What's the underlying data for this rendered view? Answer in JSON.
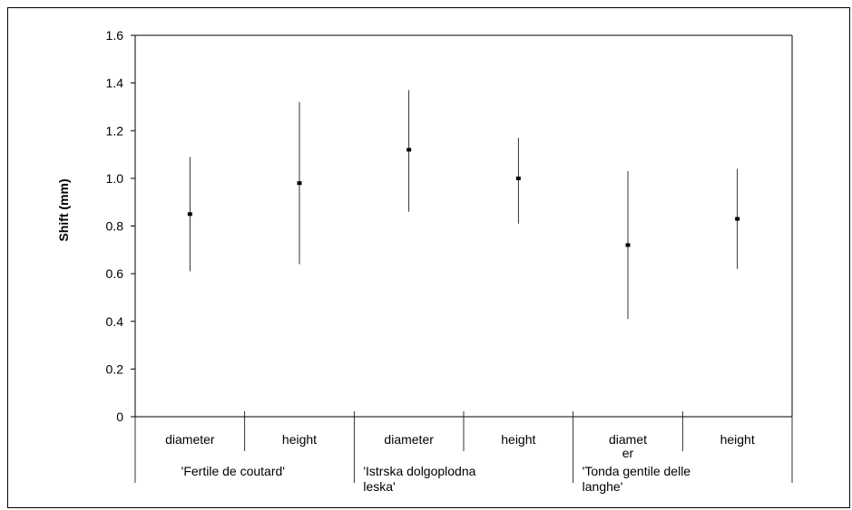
{
  "chart_data": {
    "type": "scatter",
    "ylabel": "Shift (mm)",
    "ylim": [
      0,
      1.6
    ],
    "yticks": [
      "0",
      "0.2",
      "0.4",
      "0.6",
      "0.8",
      "1.0",
      "1.2",
      "1.4",
      "1.6"
    ],
    "grid": false,
    "groups": [
      {
        "label_lines": [
          "'Fertile de coutard'"
        ]
      },
      {
        "label_lines": [
          "'Istrska dolgoplodna",
          "leska'"
        ]
      },
      {
        "label_lines": [
          "'Tonda gentile delle",
          "langhe'"
        ]
      }
    ],
    "categories": [
      {
        "label_lines": [
          "diameter"
        ],
        "group": 0,
        "mean": 0.85,
        "low": 0.61,
        "high": 1.09
      },
      {
        "label_lines": [
          "height"
        ],
        "group": 0,
        "mean": 0.98,
        "low": 0.64,
        "high": 1.32
      },
      {
        "label_lines": [
          "diameter"
        ],
        "group": 1,
        "mean": 1.12,
        "low": 0.86,
        "high": 1.37
      },
      {
        "label_lines": [
          "height"
        ],
        "group": 1,
        "mean": 1.0,
        "low": 0.81,
        "high": 1.17
      },
      {
        "label_lines": [
          "diamet",
          "er"
        ],
        "group": 2,
        "mean": 0.72,
        "low": 0.41,
        "high": 1.03
      },
      {
        "label_lines": [
          "height"
        ],
        "group": 2,
        "mean": 0.83,
        "low": 0.62,
        "high": 1.04
      }
    ]
  }
}
